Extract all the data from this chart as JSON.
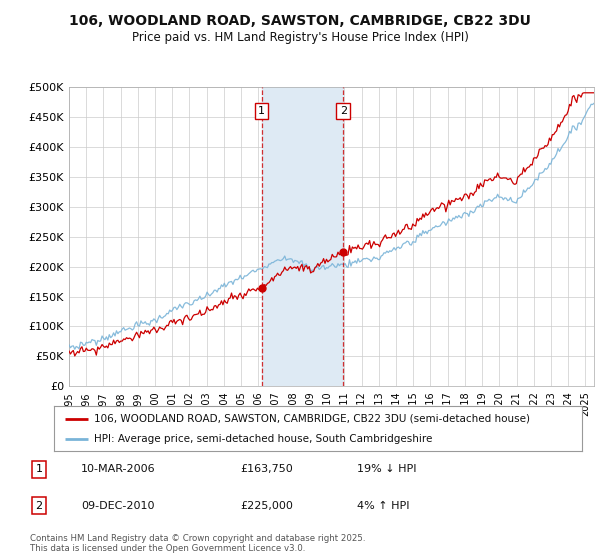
{
  "title1": "106, WOODLAND ROAD, SAWSTON, CAMBRIDGE, CB22 3DU",
  "title2": "Price paid vs. HM Land Registry's House Price Index (HPI)",
  "ylabel_ticks": [
    "£0",
    "£50K",
    "£100K",
    "£150K",
    "£200K",
    "£250K",
    "£300K",
    "£350K",
    "£400K",
    "£450K",
    "£500K"
  ],
  "ytick_values": [
    0,
    50000,
    100000,
    150000,
    200000,
    250000,
    300000,
    350000,
    400000,
    450000,
    500000
  ],
  "ylim": [
    0,
    500000
  ],
  "xlim_start": 1995.0,
  "xlim_end": 2025.5,
  "hpi_color": "#7ab4d8",
  "price_color": "#cc0000",
  "sale1_x": 2006.19,
  "sale1_y": 163750,
  "sale2_x": 2010.94,
  "sale2_y": 225000,
  "sale1_label": "1",
  "sale2_label": "2",
  "legend_line1": "106, WOODLAND ROAD, SAWSTON, CAMBRIDGE, CB22 3DU (semi-detached house)",
  "legend_line2": "HPI: Average price, semi-detached house, South Cambridgeshire",
  "table_row1_num": "1",
  "table_row1_date": "10-MAR-2006",
  "table_row1_price": "£163,750",
  "table_row1_hpi": "19% ↓ HPI",
  "table_row2_num": "2",
  "table_row2_date": "09-DEC-2010",
  "table_row2_price": "£225,000",
  "table_row2_hpi": "4% ↑ HPI",
  "footnote": "Contains HM Land Registry data © Crown copyright and database right 2025.\nThis data is licensed under the Open Government Licence v3.0.",
  "background_color": "#ffffff",
  "plot_bg_color": "#ffffff",
  "vband_color": "#deeaf4",
  "grid_color": "#cccccc"
}
